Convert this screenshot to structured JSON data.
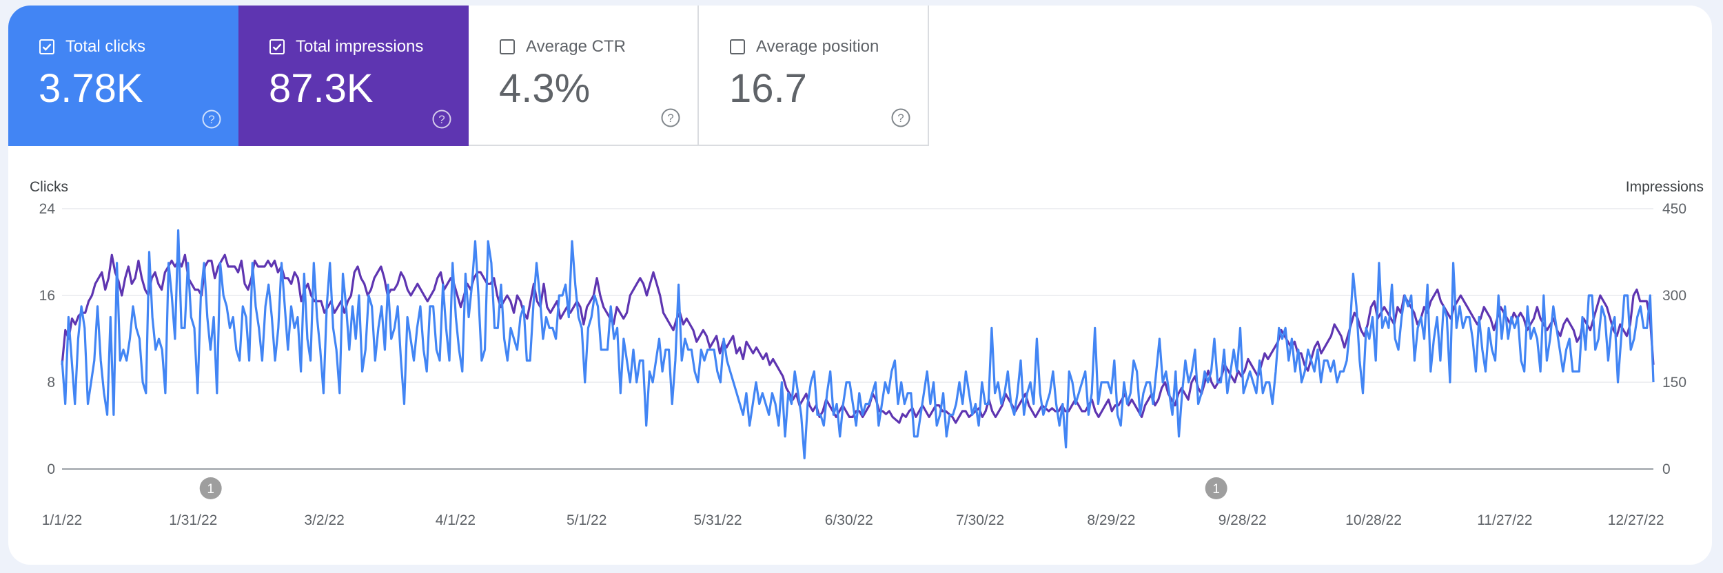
{
  "metrics": [
    {
      "label": "Total clicks",
      "value": "3.78K",
      "checked": true,
      "color": "#4285f4"
    },
    {
      "label": "Total impressions",
      "value": "87.3K",
      "checked": true,
      "color": "#5e35b1"
    },
    {
      "label": "Average CTR",
      "value": "4.3%",
      "checked": false
    },
    {
      "label": "Average position",
      "value": "16.7",
      "checked": false
    }
  ],
  "chart_data": {
    "type": "line",
    "ylabel_left": "Clicks",
    "ylabel_right": "Impressions",
    "ylim_left": [
      0,
      24
    ],
    "ylim_right": [
      0,
      450
    ],
    "yticks_left": [
      "0",
      "8",
      "16",
      "24"
    ],
    "yticks_right": [
      "0",
      "150",
      "300",
      "450"
    ],
    "xticks": [
      "1/1/22",
      "1/31/22",
      "3/2/22",
      "4/1/22",
      "5/1/22",
      "5/31/22",
      "6/30/22",
      "7/30/22",
      "8/29/22",
      "9/28/22",
      "10/28/22",
      "11/27/22",
      "12/27/22"
    ],
    "x_start": "1/1/22",
    "x_end": "12/31/22",
    "grid": true,
    "annotations": [
      {
        "date": "2/4/22",
        "label": "1"
      },
      {
        "date": "9/22/22",
        "label": "1"
      }
    ],
    "series": [
      {
        "name": "Clicks",
        "axis": "left",
        "color": "#4285f4",
        "values": [
          10,
          6,
          14,
          10,
          6,
          12,
          15,
          13,
          6,
          8,
          10,
          15,
          10,
          7,
          5,
          14,
          5,
          19,
          10,
          11,
          10,
          12,
          15,
          13,
          12,
          8,
          7,
          20,
          14,
          11,
          12,
          11,
          7,
          19,
          16,
          12,
          22,
          13,
          13,
          19,
          14,
          13,
          7,
          16,
          19,
          14,
          11,
          14,
          7,
          19,
          16,
          15,
          13,
          14,
          11,
          10,
          15,
          14,
          10,
          19,
          15,
          13,
          10,
          15,
          17,
          14,
          10,
          13,
          19,
          15,
          11,
          15,
          13,
          14,
          9,
          18,
          12,
          10,
          19,
          14,
          11,
          7,
          15,
          19,
          13,
          11,
          7,
          18,
          15,
          11,
          15,
          12,
          16,
          9,
          11,
          16,
          15,
          10,
          13,
          15,
          11,
          17,
          12,
          13,
          15,
          10,
          6,
          14,
          12,
          10,
          13,
          15,
          11,
          9,
          15,
          15,
          11,
          10,
          17,
          13,
          10,
          19,
          14,
          11,
          9,
          18,
          14,
          17,
          21,
          16,
          10,
          11,
          21,
          19,
          13,
          13,
          17,
          12,
          10,
          13,
          12,
          11,
          14,
          15,
          10,
          10,
          15,
          19,
          16,
          12,
          14,
          13,
          13,
          12,
          16,
          16,
          17,
          14,
          21,
          17,
          14,
          13,
          8,
          13,
          14,
          16,
          15,
          11,
          11,
          11,
          15,
          12,
          13,
          7,
          12,
          10,
          8,
          11,
          8,
          10,
          10,
          4,
          9,
          8,
          10,
          12,
          9,
          11,
          11,
          6,
          10,
          17,
          10,
          12,
          11,
          11,
          9,
          8,
          11,
          10,
          11,
          11,
          11,
          9,
          8,
          12,
          10,
          9,
          8,
          7,
          6,
          5,
          7,
          4,
          6,
          8,
          6,
          7,
          6,
          5,
          7,
          6,
          4,
          8,
          3,
          7,
          6,
          9,
          7,
          5,
          1,
          6,
          8,
          9,
          5,
          5,
          4,
          7,
          9,
          5,
          6,
          3,
          6,
          8,
          8,
          6,
          4,
          7,
          5,
          6,
          6,
          7,
          8,
          4,
          6,
          8,
          7,
          9,
          10,
          6,
          8,
          6,
          7,
          7,
          3,
          3,
          5,
          7,
          9,
          6,
          8,
          4,
          5,
          7,
          3,
          5,
          5,
          6,
          8,
          6,
          9,
          7,
          5,
          6,
          4,
          8,
          6,
          6,
          13,
          7,
          8,
          6,
          7,
          9,
          6,
          5,
          7,
          10,
          5,
          7,
          8,
          6,
          12,
          7,
          5,
          6,
          7,
          9,
          6,
          4,
          6,
          2,
          9,
          8,
          6,
          7,
          8,
          9,
          5,
          7,
          13,
          6,
          8,
          8,
          8,
          7,
          10,
          5,
          4,
          8,
          6,
          7,
          10,
          9,
          5,
          7,
          8,
          8,
          6,
          9,
          12,
          8,
          9,
          7,
          5,
          9,
          3,
          7,
          10,
          8,
          9,
          11,
          6,
          7,
          9,
          8,
          9,
          12,
          8,
          8,
          11,
          7,
          9,
          11,
          9,
          13,
          7,
          8,
          9,
          8,
          7,
          10,
          7,
          8,
          8,
          6,
          9,
          13,
          12,
          13,
          10,
          12,
          9,
          11,
          8,
          9,
          11,
          10,
          9,
          11,
          8,
          10,
          10,
          9,
          10,
          8,
          9,
          9,
          10,
          13,
          18,
          15,
          10,
          7,
          13,
          12,
          14,
          10,
          19,
          13,
          14,
          13,
          17,
          12,
          11,
          14,
          16,
          15,
          16,
          10,
          13,
          14,
          12,
          17,
          9,
          12,
          14,
          10,
          15,
          14,
          8,
          19,
          13,
          15,
          13,
          14,
          14,
          12,
          9,
          14,
          11,
          9,
          13,
          11,
          10,
          16,
          12,
          15,
          12,
          14,
          13,
          14,
          10,
          9,
          15,
          12,
          13,
          12,
          9,
          16,
          10,
          12,
          15,
          13,
          11,
          9,
          11,
          12,
          9,
          9,
          9,
          14,
          11,
          16,
          16,
          11,
          12,
          15,
          14,
          10,
          13,
          14,
          8,
          12,
          16,
          16,
          11,
          12,
          14,
          15,
          13,
          13,
          16,
          8
        ]
      },
      {
        "name": "Impressions",
        "axis": "right",
        "color": "#5e35b1",
        "values": [
          180,
          240,
          225,
          260,
          250,
          265,
          270,
          270,
          290,
          300,
          320,
          330,
          340,
          310,
          330,
          370,
          340,
          325,
          300,
          330,
          350,
          320,
          330,
          360,
          330,
          310,
          300,
          330,
          340,
          320,
          310,
          340,
          350,
          360,
          350,
          360,
          350,
          370,
          330,
          320,
          310,
          310,
          300,
          350,
          360,
          360,
          330,
          350,
          360,
          370,
          350,
          350,
          350,
          340,
          360,
          320,
          310,
          330,
          360,
          350,
          350,
          350,
          360,
          350,
          360,
          340,
          350,
          330,
          330,
          320,
          340,
          330,
          290,
          310,
          320,
          300,
          290,
          290,
          290,
          270,
          280,
          290,
          270,
          280,
          290,
          270,
          290,
          300,
          340,
          350,
          330,
          320,
          300,
          310,
          330,
          340,
          350,
          330,
          300,
          310,
          310,
          320,
          340,
          330,
          310,
          300,
          310,
          320,
          310,
          300,
          290,
          300,
          310,
          330,
          340,
          310,
          320,
          330,
          320,
          300,
          280,
          300,
          320,
          310,
          330,
          340,
          340,
          330,
          320,
          320,
          330,
          300,
          280,
          290,
          300,
          290,
          270,
          300,
          290,
          270,
          260,
          290,
          320,
          290,
          280,
          320,
          280,
          270,
          280,
          290,
          260,
          270,
          280,
          270,
          280,
          290,
          280,
          250,
          280,
          290,
          300,
          330,
          300,
          280,
          270,
          260,
          250,
          280,
          270,
          260,
          270,
          300,
          310,
          320,
          330,
          320,
          300,
          320,
          340,
          320,
          300,
          270,
          260,
          250,
          240,
          260,
          270,
          250,
          260,
          250,
          240,
          220,
          230,
          240,
          230,
          210,
          220,
          230,
          200,
          220,
          210,
          220,
          230,
          200,
          210,
          190,
          220,
          210,
          200,
          210,
          200,
          190,
          200,
          180,
          190,
          180,
          170,
          160,
          140,
          130,
          120,
          130,
          110,
          120,
          130,
          110,
          100,
          110,
          90,
          100,
          120,
          110,
          100,
          90,
          100,
          110,
          100,
          90,
          90,
          100,
          100,
          90,
          100,
          110,
          130,
          120,
          100,
          100,
          95,
          100,
          90,
          85,
          80,
          95,
          90,
          100,
          105,
          90,
          100,
          110,
          100,
          90,
          100,
          110,
          110,
          100,
          100,
          95,
          90,
          80,
          90,
          100,
          100,
          90,
          95,
          100,
          105,
          90,
          100,
          120,
          100,
          90,
          100,
          110,
          130,
          120,
          110,
          100,
          110,
          120,
          130,
          110,
          100,
          90,
          100,
          110,
          105,
          100,
          105,
          100,
          100,
          110,
          100,
          100,
          110,
          120,
          110,
          100,
          100,
          110,
          120,
          100,
          90,
          100,
          110,
          120,
          100,
          110,
          110,
          120,
          130,
          110,
          120,
          110,
          100,
          90,
          110,
          120,
          130,
          110,
          120,
          140,
          150,
          130,
          120,
          110,
          130,
          140,
          130,
          120,
          150,
          160,
          140,
          130,
          150,
          170,
          150,
          140,
          150,
          160,
          180,
          170,
          160,
          150,
          170,
          160,
          170,
          190,
          180,
          170,
          160,
          180,
          200,
          190,
          200,
          210,
          220,
          240,
          230,
          220,
          210,
          220,
          200,
          200,
          180,
          170,
          190,
          210,
          220,
          200,
          210,
          220,
          230,
          250,
          240,
          230,
          210,
          230,
          250,
          270,
          260,
          240,
          230,
          250,
          280,
          290,
          260,
          270,
          280,
          270,
          260,
          250,
          280,
          270,
          300,
          290,
          280,
          270,
          250,
          260,
          280,
          270,
          290,
          300,
          310,
          290,
          280,
          270,
          260,
          280,
          290,
          300,
          290,
          280,
          270,
          260,
          250,
          260,
          280,
          270,
          260,
          240,
          260,
          280,
          270,
          260,
          250,
          270,
          260,
          270,
          260,
          240,
          250,
          260,
          280,
          260,
          250,
          240,
          250,
          260,
          240,
          230,
          250,
          260,
          250,
          240,
          220,
          230,
          260,
          250,
          240,
          260,
          280,
          300,
          290,
          280,
          260,
          240,
          230,
          250,
          240,
          230,
          250,
          300,
          310,
          290,
          290,
          290,
          260,
          180
        ]
      }
    ]
  },
  "colors": {
    "clicks": "#4285f4",
    "impressions": "#5e35b1",
    "annotation": "#9e9e9e",
    "grid": "#e8eaed",
    "baseline": "#9aa0a6"
  },
  "icons": {
    "checkbox": "checkbox-icon",
    "help": "help-circle-icon"
  }
}
